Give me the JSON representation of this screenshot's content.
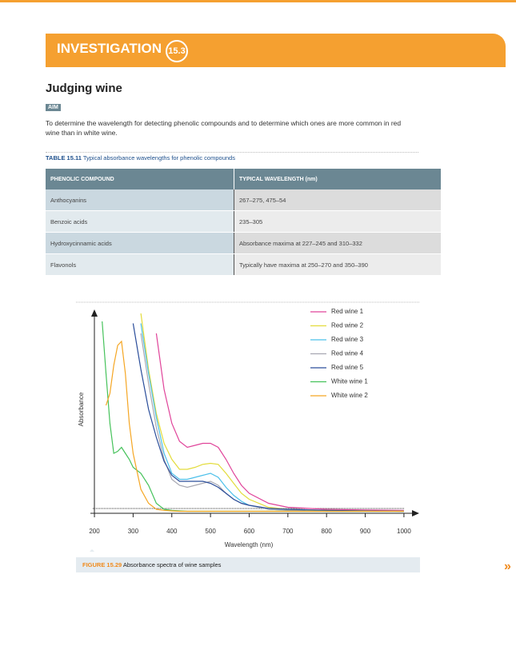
{
  "header": {
    "label": "INVESTIGATION",
    "number": "15.3"
  },
  "title": "Judging wine",
  "aim": {
    "label": "AIM",
    "text": "To determine the wavelength for detecting phenolic compounds and to determine which ones are more common in red wine than in white wine."
  },
  "table": {
    "caption_label": "TABLE 15.11",
    "caption_text": "Typical absorbance wavelengths for phenolic compounds",
    "header": [
      "PHENOLIC COMPOUND",
      "TYPICAL WAVELENGTH (nm)"
    ],
    "rows": [
      [
        "Anthocyanins",
        "267–275, 475–54"
      ],
      [
        "Benzoic acids",
        "235–305"
      ],
      [
        "Hydroxycinnamic acids",
        "Absorbance maxima at 227–245 and 310–332"
      ],
      [
        "Flavonols",
        "Typically have maxima at 250–270 and 350–390"
      ]
    ]
  },
  "figure": {
    "label": "FIGURE 15.29",
    "text": "Absorbance spectra of wine samples"
  },
  "next_icon": "»",
  "chart_data": {
    "type": "line",
    "x_label": "Wavelength (nm)",
    "y_label": "Absorbance",
    "x": [
      220,
      230,
      240,
      250,
      260,
      270,
      280,
      290,
      300,
      320,
      340,
      360,
      380,
      400,
      420,
      440,
      460,
      480,
      500,
      520,
      540,
      560,
      580,
      600,
      650,
      700,
      800,
      900,
      1000
    ],
    "xlim": [
      190,
      1025
    ],
    "xticks": [
      200,
      300,
      400,
      500,
      600,
      700,
      800,
      900,
      1000
    ],
    "ylim": [
      0,
      1
    ],
    "legend": "top-right",
    "series": [
      {
        "name": "Red wine 1",
        "color": "#e0449a",
        "values": [
          null,
          null,
          null,
          null,
          null,
          null,
          null,
          null,
          null,
          null,
          null,
          0.9,
          0.62,
          0.45,
          0.36,
          0.33,
          0.34,
          0.35,
          0.35,
          0.33,
          0.27,
          0.2,
          0.14,
          0.1,
          0.05,
          0.03,
          0.02,
          0.017,
          0.015
        ]
      },
      {
        "name": "Red wine 2",
        "color": "#e3dc3c",
        "values": [
          null,
          null,
          null,
          null,
          null,
          null,
          null,
          null,
          null,
          1.0,
          0.72,
          0.5,
          0.35,
          0.27,
          0.22,
          0.22,
          0.23,
          0.245,
          0.25,
          0.245,
          0.2,
          0.15,
          0.1,
          0.07,
          0.03,
          0.02,
          0.015,
          0.012,
          0.01
        ]
      },
      {
        "name": "Red wine 3",
        "color": "#4cc0ea",
        "values": [
          null,
          null,
          null,
          null,
          null,
          null,
          null,
          null,
          null,
          0.95,
          0.7,
          0.48,
          0.3,
          0.2,
          0.17,
          0.17,
          0.18,
          0.19,
          0.2,
          0.18,
          0.13,
          0.09,
          0.06,
          0.04,
          0.02,
          0.015,
          0.01,
          0.01,
          0.01
        ]
      },
      {
        "name": "Red wine 4",
        "color": "#a8a8b2",
        "values": [
          null,
          null,
          null,
          null,
          null,
          null,
          null,
          null,
          null,
          0.9,
          0.65,
          0.43,
          0.27,
          0.17,
          0.14,
          0.13,
          0.14,
          0.15,
          0.16,
          0.14,
          0.1,
          0.07,
          0.05,
          0.04,
          0.02,
          0.015,
          0.01,
          0.01,
          0.01
        ]
      },
      {
        "name": "Red wine 5",
        "color": "#2a4d9a",
        "values": [
          null,
          null,
          null,
          null,
          null,
          null,
          null,
          null,
          0.95,
          0.72,
          0.52,
          0.38,
          0.26,
          0.19,
          0.16,
          0.16,
          0.16,
          0.16,
          0.15,
          0.13,
          0.1,
          0.07,
          0.05,
          0.04,
          0.025,
          0.02,
          0.015,
          0.012,
          0.01
        ]
      },
      {
        "name": "White wine 1",
        "color": "#45c25a",
        "values": [
          0.96,
          0.7,
          0.45,
          0.3,
          0.31,
          0.33,
          0.3,
          0.27,
          0.23,
          0.2,
          0.14,
          0.05,
          0.02,
          0.015,
          0.012,
          0.01,
          0.01,
          0.01,
          0.01,
          0.01,
          0.01,
          0.01,
          0.01,
          0.01,
          0.01,
          0.01,
          0.01,
          0.01,
          0.01
        ]
      },
      {
        "name": "White wine 2",
        "color": "#f5a623",
        "values": [
          null,
          0.54,
          0.6,
          0.74,
          0.84,
          0.86,
          0.7,
          0.45,
          0.3,
          0.12,
          0.05,
          0.02,
          0.015,
          0.012,
          0.01,
          0.01,
          0.01,
          0.01,
          0.01,
          0.01,
          0.01,
          0.01,
          0.01,
          0.01,
          0.01,
          0.01,
          0.01,
          0.01,
          0.01
        ]
      }
    ]
  }
}
